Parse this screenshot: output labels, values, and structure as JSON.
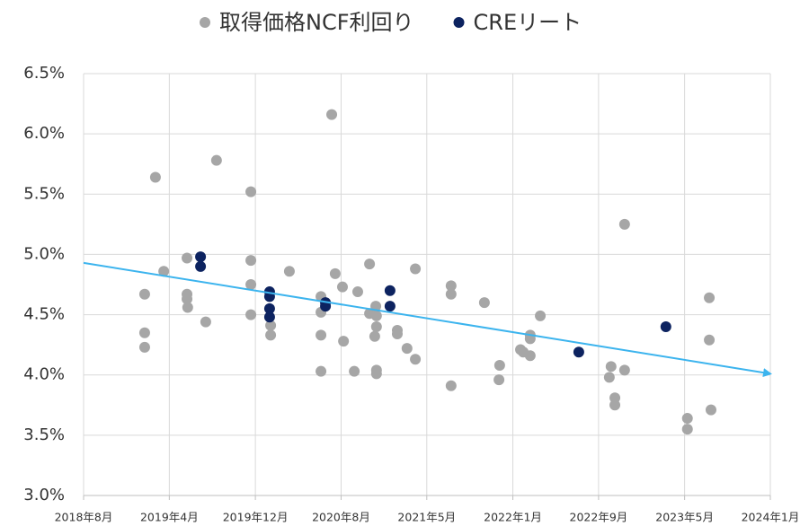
{
  "chart_data": {
    "type": "scatter",
    "xlim": [
      43313,
      45292
    ],
    "xticks": [
      {
        "value": 43313,
        "label": "2018年8月"
      },
      {
        "value": 43560,
        "label": "2019年4月"
      },
      {
        "value": 43808,
        "label": "2019年12月"
      },
      {
        "value": 44055,
        "label": "2020年8月"
      },
      {
        "value": 44302,
        "label": "2021年5月"
      },
      {
        "value": 44550,
        "label": "2022年1月"
      },
      {
        "value": 44797,
        "label": "2022年9月"
      },
      {
        "value": 45045,
        "label": "2023年5月"
      },
      {
        "value": 45292,
        "label": "2024年1月"
      }
    ],
    "ylim": [
      3.0,
      6.5
    ],
    "yticks": [
      {
        "value": 3.0,
        "label": "3.0%"
      },
      {
        "value": 3.5,
        "label": "3.5%"
      },
      {
        "value": 4.0,
        "label": "4.0%"
      },
      {
        "value": 4.5,
        "label": "4.5%"
      },
      {
        "value": 5.0,
        "label": "5.0%"
      },
      {
        "value": 5.5,
        "label": "5.5%"
      },
      {
        "value": 6.0,
        "label": "6.0%"
      },
      {
        "value": 6.5,
        "label": "6.5%"
      }
    ],
    "grid": true,
    "legend": "top",
    "series": [
      {
        "name": "取得価格NCF利回り",
        "color": "#a6a6a6",
        "x": [
          43489,
          43489,
          43489,
          43520,
          43544,
          43611,
          43611,
          43611,
          43613,
          43665,
          43696,
          43795,
          43795,
          43795,
          43795,
          43852,
          43852,
          43906,
          43997,
          43997,
          43997,
          43997,
          44028,
          44038,
          44059,
          44062,
          44093,
          44103,
          44137,
          44137,
          44155,
          44157,
          44157,
          44152,
          44157,
          44157,
          44217,
          44217,
          44245,
          44269,
          44269,
          44372,
          44372,
          44372,
          44468,
          44512,
          44510,
          44572,
          44580,
          44600,
          44600,
          44600,
          44629,
          44828,
          44833,
          44844,
          44844,
          44872,
          44872,
          45053,
          45053,
          45116,
          45116,
          45121
        ],
        "values": [
          4.67,
          4.35,
          4.23,
          5.64,
          4.86,
          4.97,
          4.67,
          4.63,
          4.56,
          4.44,
          5.78,
          5.52,
          4.95,
          4.75,
          4.5,
          4.41,
          4.33,
          4.86,
          4.65,
          4.52,
          4.33,
          4.03,
          6.16,
          4.84,
          4.73,
          4.28,
          4.03,
          4.69,
          4.92,
          4.51,
          4.57,
          4.49,
          4.4,
          4.32,
          4.04,
          4.01,
          4.37,
          4.34,
          4.22,
          4.88,
          4.13,
          4.74,
          4.67,
          3.91,
          4.6,
          4.08,
          3.96,
          4.21,
          4.19,
          4.33,
          4.3,
          4.16,
          4.49,
          3.98,
          4.07,
          3.81,
          3.75,
          5.25,
          4.04,
          3.64,
          3.55,
          4.64,
          4.29,
          3.71
        ]
      },
      {
        "name": "CREリート",
        "color": "#0d2360",
        "x": [
          43650,
          43650,
          43849,
          43849,
          43849,
          43849,
          44010,
          44010,
          44196,
          44196,
          44740,
          44991
        ],
        "values": [
          4.98,
          4.9,
          4.69,
          4.65,
          4.55,
          4.48,
          4.6,
          4.57,
          4.7,
          4.57,
          4.19,
          4.4
        ]
      }
    ],
    "trendline": {
      "color": "#3cb4ee",
      "x": [
        43313,
        45292
      ],
      "values": [
        4.93,
        4.01
      ]
    }
  }
}
